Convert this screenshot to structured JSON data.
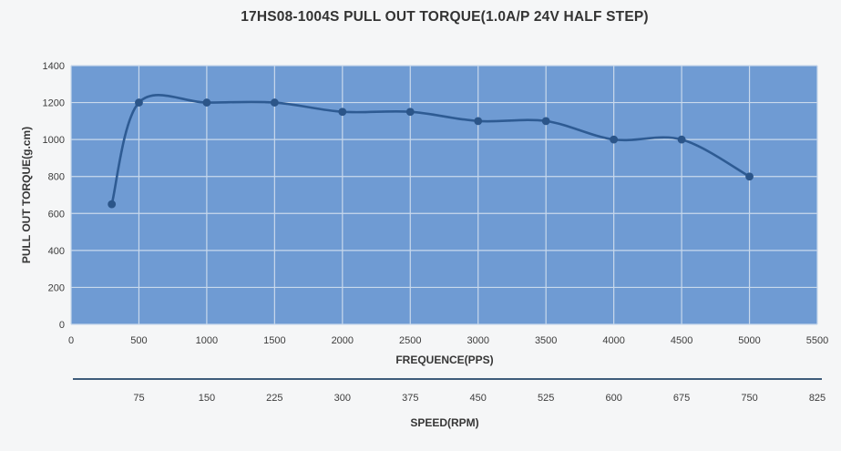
{
  "page": {
    "background": "#F5F6F7"
  },
  "chart_data": {
    "type": "line",
    "title": "17HS08-1004S PULL OUT TORQUE(1.0A/P 24V HALF STEP)",
    "xlabel": "FREQUENCE(PPS)",
    "ylabel": "PULL OUT TORQUE(g.cm)",
    "x2label": "SPEED(RPM)",
    "legend": "none",
    "grid": true,
    "smooth": true,
    "xlim": [
      0,
      5500
    ],
    "ylim": [
      0,
      1400
    ],
    "x2lim": [
      0,
      825
    ],
    "x_ticks": [
      0,
      500,
      1000,
      1500,
      2000,
      2500,
      3000,
      3500,
      4000,
      4500,
      5000,
      5500
    ],
    "y_ticks": [
      0,
      200,
      400,
      600,
      800,
      1000,
      1200,
      1400
    ],
    "x2_ticks": [
      75,
      150,
      225,
      300,
      375,
      450,
      525,
      600,
      675,
      750,
      825
    ],
    "series": [
      {
        "name": "pull-out-torque",
        "x": [
          300,
          500,
          1000,
          1500,
          2000,
          2500,
          3000,
          3500,
          4000,
          4500,
          5000
        ],
        "y": [
          650,
          1200,
          1200,
          1200,
          1150,
          1150,
          1100,
          1100,
          1000,
          1000,
          800
        ]
      }
    ],
    "colors": {
      "page_background": "#F5F6F7",
      "plot_background": "#6F9BD3",
      "gridline": "#C9D9EC",
      "line": "#2E5B93",
      "marker": "#2B5589",
      "speed_axis_line": "#3E5C7A",
      "title_text": "#333333",
      "axis_text": "#3C3C3C"
    }
  }
}
